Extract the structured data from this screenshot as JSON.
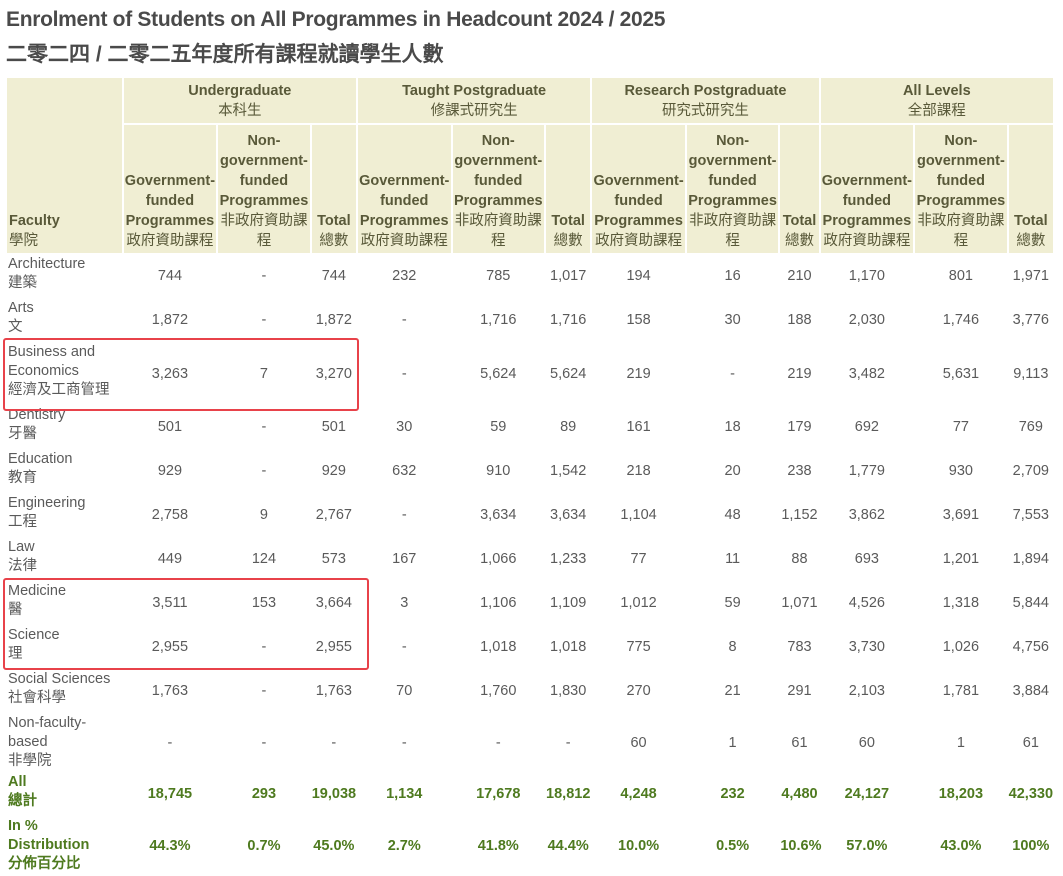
{
  "title": {
    "en": "Enrolment of Students on All Programmes in Headcount 2024 / 2025",
    "zh": "二零二四 / 二零二五年度所有課程就讀學生人數"
  },
  "table": {
    "faculty_header": {
      "en": "Faculty",
      "zh": "學院"
    },
    "groups": [
      {
        "en": "Undergraduate",
        "zh": "本科生"
      },
      {
        "en": "Taught Postgraduate",
        "zh": "修課式研究生"
      },
      {
        "en": "Research Postgraduate",
        "zh": "研究式研究生"
      },
      {
        "en": "All Levels",
        "zh": "全部課程"
      }
    ],
    "subcols": {
      "gov": {
        "en": "Government-funded Programmes",
        "zh": "政府資助課程"
      },
      "nongov": {
        "en": "Non-government-funded Programmes",
        "zh": "非政府資助課程"
      },
      "total": {
        "en": "Total",
        "zh": "總數"
      }
    },
    "rows": [
      {
        "en": "Architecture",
        "zh": "建築",
        "v": [
          "744",
          "-",
          "744",
          "232",
          "785",
          "1,017",
          "194",
          "16",
          "210",
          "1,170",
          "801",
          "1,971"
        ]
      },
      {
        "en": "Arts",
        "zh": "文",
        "v": [
          "1,872",
          "-",
          "1,872",
          "-",
          "1,716",
          "1,716",
          "158",
          "30",
          "188",
          "2,030",
          "1,746",
          "3,776"
        ]
      },
      {
        "en": "Business and Economics",
        "zh": "經濟及工商管理",
        "v": [
          "3,263",
          "7",
          "3,270",
          "-",
          "5,624",
          "5,624",
          "219",
          "-",
          "219",
          "3,482",
          "5,631",
          "9,113"
        ]
      },
      {
        "en": "Dentistry",
        "zh": "牙醫",
        "v": [
          "501",
          "-",
          "501",
          "30",
          "59",
          "89",
          "161",
          "18",
          "179",
          "692",
          "77",
          "769"
        ]
      },
      {
        "en": "Education",
        "zh": "教育",
        "v": [
          "929",
          "-",
          "929",
          "632",
          "910",
          "1,542",
          "218",
          "20",
          "238",
          "1,779",
          "930",
          "2,709"
        ]
      },
      {
        "en": "Engineering",
        "zh": "工程",
        "v": [
          "2,758",
          "9",
          "2,767",
          "-",
          "3,634",
          "3,634",
          "1,104",
          "48",
          "1,152",
          "3,862",
          "3,691",
          "7,553"
        ]
      },
      {
        "en": "Law",
        "zh": "法律",
        "v": [
          "449",
          "124",
          "573",
          "167",
          "1,066",
          "1,233",
          "77",
          "11",
          "88",
          "693",
          "1,201",
          "1,894"
        ]
      },
      {
        "en": "Medicine",
        "zh": "醫",
        "v": [
          "3,511",
          "153",
          "3,664",
          "3",
          "1,106",
          "1,109",
          "1,012",
          "59",
          "1,071",
          "4,526",
          "1,318",
          "5,844"
        ]
      },
      {
        "en": "Science",
        "zh": "理",
        "v": [
          "2,955",
          "-",
          "2,955",
          "-",
          "1,018",
          "1,018",
          "775",
          "8",
          "783",
          "3,730",
          "1,026",
          "4,756"
        ]
      },
      {
        "en": "Social Sciences",
        "zh": "社會科學",
        "v": [
          "1,763",
          "-",
          "1,763",
          "70",
          "1,760",
          "1,830",
          "270",
          "21",
          "291",
          "2,103",
          "1,781",
          "3,884"
        ]
      },
      {
        "en": "Non-faculty-based",
        "zh": "非學院",
        "v": [
          "-",
          "-",
          "-",
          "-",
          "-",
          "-",
          "60",
          "1",
          "61",
          "60",
          "1",
          "61"
        ]
      },
      {
        "en": "All",
        "zh": "總計",
        "v": [
          "18,745",
          "293",
          "19,038",
          "1,134",
          "17,678",
          "18,812",
          "4,248",
          "232",
          "4,480",
          "24,127",
          "18,203",
          "42,330"
        ]
      },
      {
        "en": "In % Distribution",
        "zh": "分佈百分比",
        "v": [
          "44.3%",
          "0.7%",
          "45.0%",
          "2.7%",
          "41.8%",
          "44.4%",
          "10.0%",
          "0.5%",
          "10.6%",
          "57.0%",
          "43.0%",
          "100%"
        ]
      }
    ]
  },
  "colors": {
    "header_bg": "#f0eed3",
    "header_text": "#595939",
    "total_text": "#4e7a1f",
    "highlight_border": "#e8424a"
  }
}
